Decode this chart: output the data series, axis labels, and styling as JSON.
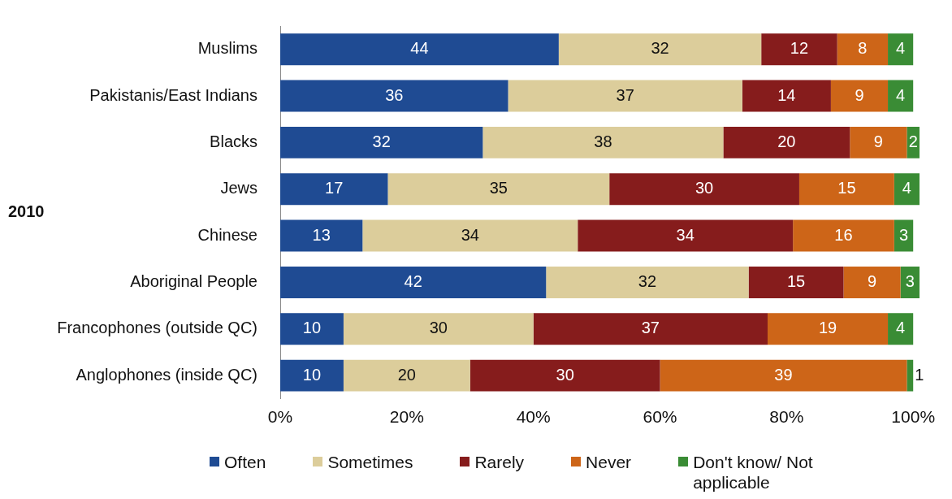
{
  "chart_data": {
    "type": "bar",
    "orientation": "horizontal",
    "stacked": true,
    "data_labels": true,
    "legend": "bottom",
    "ylabel": "2010",
    "categories": [
      "Muslims",
      "Pakistanis/East Indians",
      "Blacks",
      "Jews",
      "Chinese",
      "Aboriginal People",
      "Francophones (outside QC)",
      "Anglophones (inside QC)"
    ],
    "series": [
      {
        "name": "Often",
        "color": "#1f4b93",
        "values": [
          44,
          36,
          32,
          17,
          13,
          42,
          10,
          10
        ]
      },
      {
        "name": "Sometimes",
        "color": "#dccd9b",
        "values": [
          32,
          37,
          38,
          35,
          34,
          32,
          30,
          20
        ]
      },
      {
        "name": "Rarely",
        "color": "#861c1c",
        "values": [
          12,
          14,
          20,
          30,
          34,
          15,
          37,
          30
        ]
      },
      {
        "name": "Never",
        "color": "#cd6518",
        "values": [
          8,
          9,
          9,
          15,
          16,
          9,
          19,
          39
        ]
      },
      {
        "name": "Don't know/ Not applicable",
        "color": "#3a8c35",
        "values": [
          4,
          4,
          2,
          4,
          3,
          3,
          4,
          1
        ]
      }
    ],
    "xlim": [
      0,
      101
    ],
    "xticks": [
      {
        "value": 0,
        "label": "0%"
      },
      {
        "value": 20,
        "label": "20%"
      },
      {
        "value": 40,
        "label": "40%"
      },
      {
        "value": 60,
        "label": "60%"
      },
      {
        "value": 80,
        "label": "80%"
      },
      {
        "value": 100,
        "label": "100%"
      }
    ]
  }
}
